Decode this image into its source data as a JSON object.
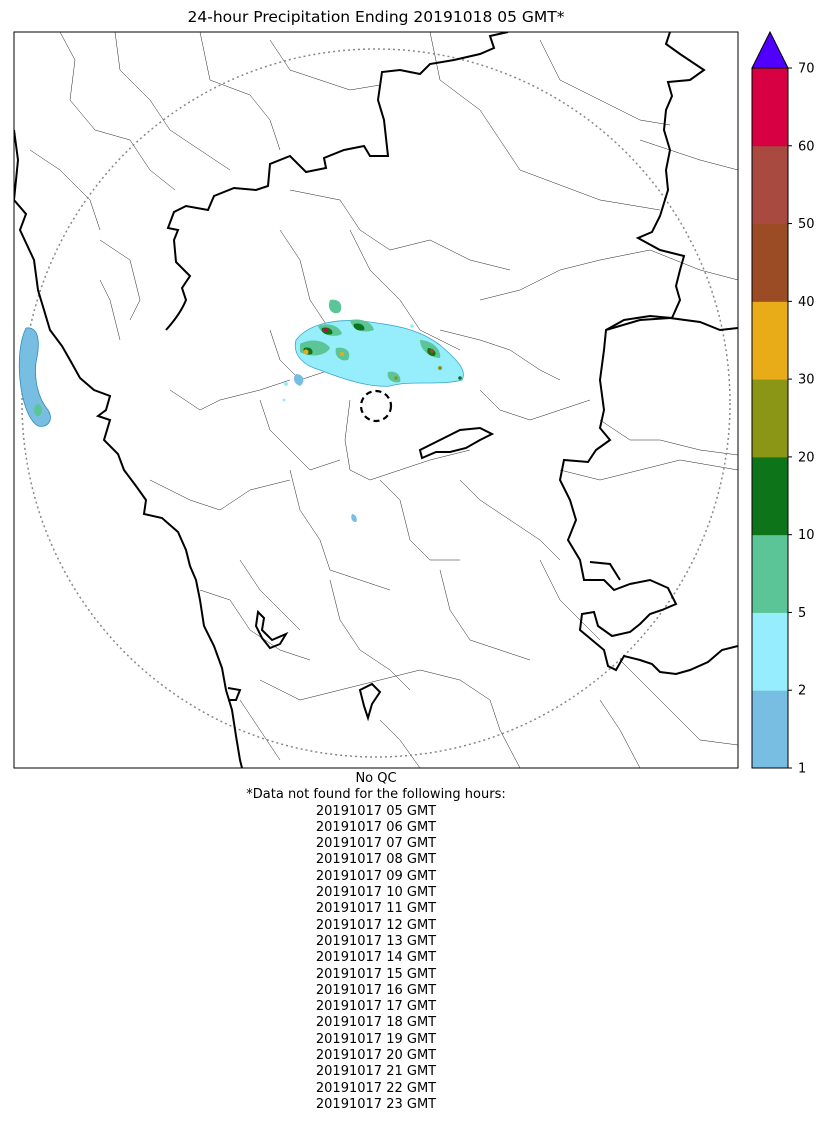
{
  "title": "24-hour Precipitation Ending 20191018 05 GMT*",
  "colorbar": {
    "unit": "",
    "extend": "max",
    "extend_color": "#5100ff",
    "ticks": [
      "1",
      "2",
      "5",
      "10",
      "20",
      "30",
      "40",
      "50",
      "60",
      "70"
    ],
    "bins": [
      {
        "from": 1,
        "to": 2,
        "color": "#78bee3"
      },
      {
        "from": 2,
        "to": 5,
        "color": "#96eefc"
      },
      {
        "from": 5,
        "to": 10,
        "color": "#5cc598"
      },
      {
        "from": 10,
        "to": 20,
        "color": "#0e741a"
      },
      {
        "from": 20,
        "to": 30,
        "color": "#8c9616"
      },
      {
        "from": 30,
        "to": 40,
        "color": "#e8ac18"
      },
      {
        "from": 40,
        "to": 50,
        "color": "#9c4c24"
      },
      {
        "from": 50,
        "to": 60,
        "color": "#a84a40"
      },
      {
        "from": 60,
        "to": 70,
        "color": "#d60042"
      }
    ]
  },
  "map": {
    "features": [
      "radar-range-ring",
      "radar-site-marker",
      "state-boundaries",
      "district-boundaries",
      "coastline",
      "precipitation-field"
    ]
  },
  "footer": {
    "qc_note": "No QC",
    "missing_header": "*Data not found for the following hours:",
    "missing_hours": [
      "20191017 05 GMT",
      "20191017 06 GMT",
      "20191017 07 GMT",
      "20191017 08 GMT",
      "20191017 09 GMT",
      "20191017 10 GMT",
      "20191017 11 GMT",
      "20191017 12 GMT",
      "20191017 13 GMT",
      "20191017 14 GMT",
      "20191017 15 GMT",
      "20191017 16 GMT",
      "20191017 17 GMT",
      "20191017 18 GMT",
      "20191017 19 GMT",
      "20191017 20 GMT",
      "20191017 21 GMT",
      "20191017 22 GMT",
      "20191017 23 GMT"
    ]
  }
}
